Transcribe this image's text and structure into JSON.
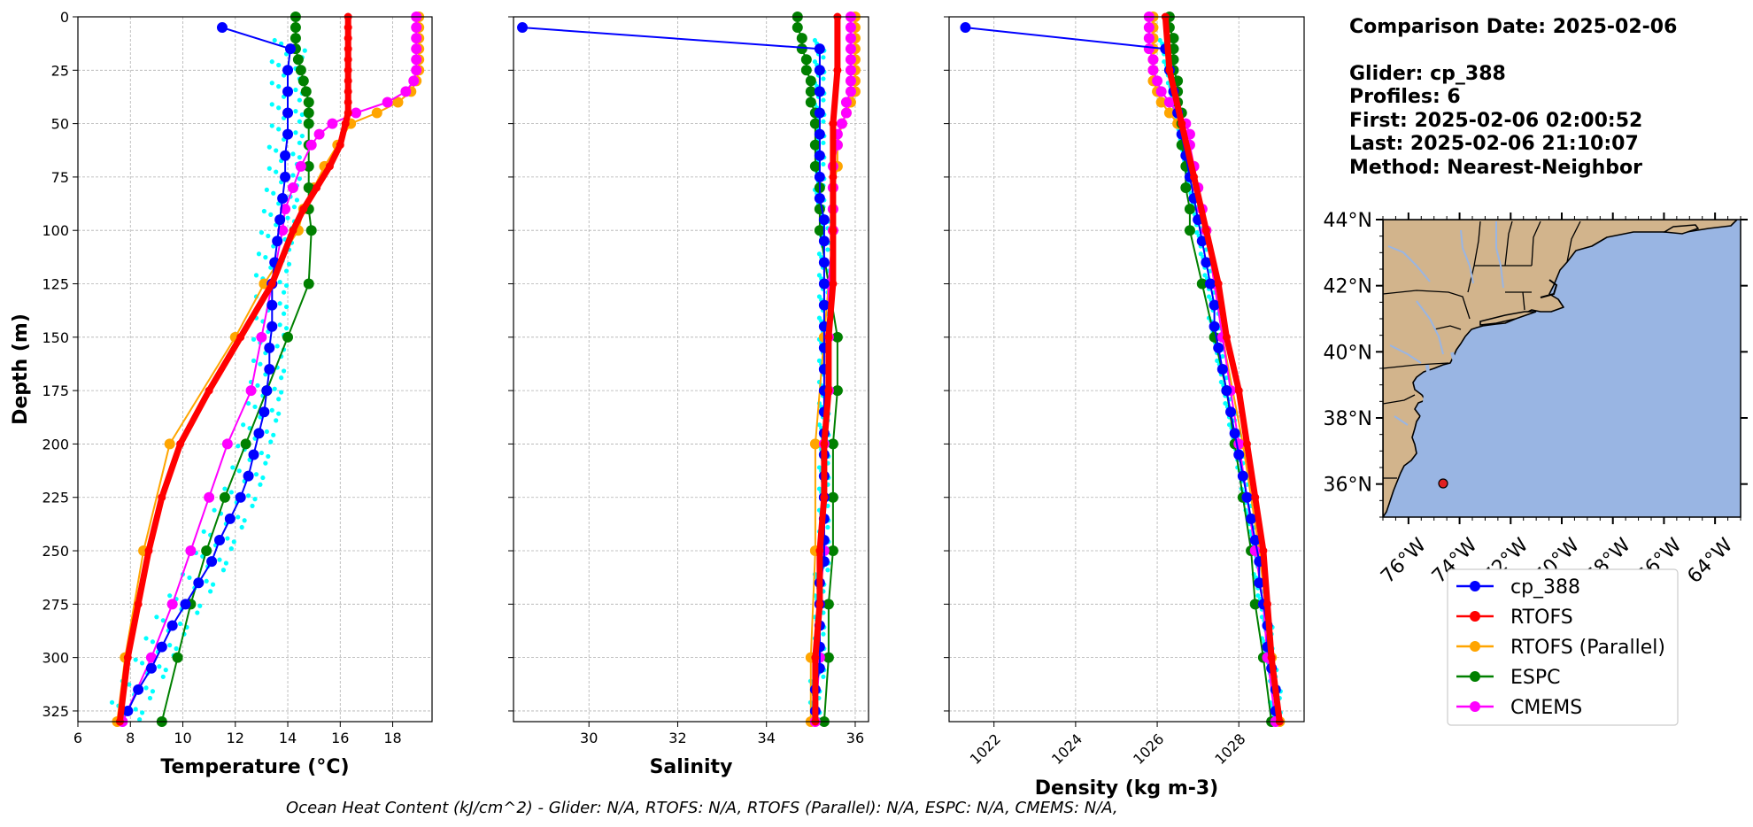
{
  "info": {
    "comparison_date": "Comparison Date: 2025-02-06",
    "glider": "Glider: cp_388",
    "profiles": "Profiles: 6",
    "first": "First: 2025-02-06 02:00:52",
    "last": "Last: 2025-02-06 21:10:07",
    "method": "Method: Nearest-Neighbor"
  },
  "footer": "Ocean Heat Content (kJ/cm^2) - Glider: N/A,  RTOFS: N/A,  RTOFS (Parallel): N/A,  ESPC: N/A,  CMEMS: N/A,",
  "legend": [
    {
      "name": "cp_388",
      "color": "#0000ff"
    },
    {
      "name": "RTOFS",
      "color": "#ff0000"
    },
    {
      "name": "RTOFS (Parallel)",
      "color": "#ffa500"
    },
    {
      "name": "ESPC",
      "color": "#008000"
    },
    {
      "name": "CMEMS",
      "color": "#ff00ff"
    }
  ],
  "map": {
    "lat_labels": [
      "44°N",
      "42°N",
      "40°N",
      "38°N",
      "36°N"
    ],
    "lon_labels": [
      "76°W",
      "74°W",
      "72°W",
      "70°W",
      "68°W",
      "66°W",
      "64°W"
    ],
    "lon_range": [
      -77,
      -63
    ],
    "lat_range": [
      35,
      44
    ],
    "glider_location": {
      "lon": -74.2,
      "lat": 36.1,
      "color": "#e02020"
    },
    "land_color": "#d2b48c",
    "ocean_color": "#99b5e3"
  },
  "chart_data": [
    {
      "type": "line",
      "xlabel": "Temperature (°C)",
      "ylabel": "Depth (m)",
      "xlim": [
        6,
        19.5
      ],
      "ylim": [
        330,
        0
      ],
      "x_ticks": [
        6,
        8,
        10,
        12,
        14,
        16,
        18
      ],
      "y_ticks": [
        0,
        25,
        50,
        75,
        100,
        125,
        150,
        175,
        200,
        225,
        250,
        275,
        300,
        325
      ],
      "grid": true,
      "series": [
        {
          "name": "cp_388",
          "color": "#0000ff",
          "depth": [
            5,
            15,
            25,
            35,
            45,
            55,
            65,
            75,
            85,
            95,
            105,
            115,
            125,
            135,
            145,
            155,
            165,
            175,
            185,
            195,
            205,
            215,
            225,
            235,
            245,
            255,
            265,
            275,
            285,
            295,
            305,
            315,
            325
          ],
          "values": [
            11.5,
            14.1,
            14.0,
            14.0,
            14.0,
            14.0,
            13.9,
            13.9,
            13.8,
            13.7,
            13.6,
            13.5,
            13.4,
            13.4,
            13.4,
            13.3,
            13.3,
            13.2,
            13.1,
            12.9,
            12.7,
            12.5,
            12.2,
            11.8,
            11.4,
            11.1,
            10.6,
            10.1,
            9.6,
            9.2,
            8.8,
            8.3,
            7.9
          ]
        },
        {
          "name": "RTOFS",
          "color": "#ff0000",
          "depth": [
            0,
            5,
            10,
            15,
            20,
            25,
            30,
            35,
            40,
            45,
            50,
            60,
            70,
            80,
            90,
            100,
            125,
            150,
            175,
            200,
            225,
            250,
            275,
            300,
            330
          ],
          "values": [
            16.3,
            16.3,
            16.3,
            16.3,
            16.3,
            16.3,
            16.3,
            16.3,
            16.3,
            16.3,
            16.2,
            16.0,
            15.6,
            15.1,
            14.6,
            14.2,
            13.4,
            12.2,
            11.0,
            9.9,
            9.2,
            8.7,
            8.3,
            7.9,
            7.6
          ]
        },
        {
          "name": "RTOFS (Parallel)",
          "color": "#ffa500",
          "depth": [
            0,
            5,
            10,
            15,
            20,
            25,
            30,
            35,
            40,
            45,
            50,
            60,
            70,
            80,
            90,
            100,
            125,
            150,
            200,
            250,
            300,
            330
          ],
          "values": [
            19.0,
            19.0,
            19.0,
            19.0,
            19.0,
            19.0,
            18.9,
            18.7,
            18.2,
            17.4,
            16.4,
            15.9,
            15.4,
            15.0,
            14.6,
            14.4,
            13.1,
            12.0,
            9.5,
            8.5,
            7.8,
            7.5
          ]
        },
        {
          "name": "ESPC",
          "color": "#008000",
          "depth": [
            0,
            5,
            10,
            15,
            20,
            25,
            30,
            35,
            40,
            45,
            50,
            60,
            70,
            80,
            90,
            100,
            125,
            150,
            175,
            200,
            225,
            250,
            275,
            300,
            330
          ],
          "values": [
            14.3,
            14.3,
            14.3,
            14.3,
            14.4,
            14.5,
            14.6,
            14.7,
            14.8,
            14.8,
            14.8,
            14.8,
            14.8,
            14.8,
            14.8,
            14.9,
            14.8,
            14.0,
            13.2,
            12.4,
            11.6,
            10.9,
            10.3,
            9.8,
            9.2
          ]
        },
        {
          "name": "CMEMS",
          "color": "#ff00ff",
          "depth": [
            0,
            5,
            10,
            15,
            20,
            25,
            30,
            35,
            40,
            45,
            50,
            55,
            60,
            70,
            80,
            90,
            100,
            125,
            150,
            175,
            200,
            225,
            250,
            275,
            300,
            330
          ],
          "values": [
            18.9,
            18.9,
            18.9,
            18.9,
            18.9,
            18.9,
            18.8,
            18.5,
            17.8,
            16.6,
            15.7,
            15.2,
            14.9,
            14.5,
            14.2,
            13.9,
            13.8,
            13.4,
            13.0,
            12.6,
            11.7,
            11.0,
            10.3,
            9.6,
            8.8,
            7.7
          ]
        }
      ]
    },
    {
      "type": "line",
      "xlabel": "Salinity",
      "xlim": [
        28.3,
        36.3
      ],
      "ylim": [
        330,
        0
      ],
      "x_ticks": [
        30,
        32,
        34,
        36
      ],
      "y_ticks": [
        0,
        25,
        50,
        75,
        100,
        125,
        150,
        175,
        200,
        225,
        250,
        275,
        300,
        325
      ],
      "grid": true,
      "series": [
        {
          "name": "cp_388",
          "color": "#0000ff",
          "depth": [
            5,
            15,
            25,
            35,
            45,
            55,
            65,
            75,
            85,
            95,
            105,
            115,
            125,
            135,
            145,
            155,
            165,
            175,
            185,
            195,
            205,
            215,
            225,
            235,
            245,
            255,
            265,
            275,
            285,
            295,
            305,
            315,
            325
          ],
          "values": [
            28.5,
            35.2,
            35.2,
            35.2,
            35.2,
            35.2,
            35.2,
            35.2,
            35.2,
            35.3,
            35.3,
            35.3,
            35.3,
            35.3,
            35.3,
            35.3,
            35.3,
            35.3,
            35.3,
            35.3,
            35.3,
            35.3,
            35.3,
            35.3,
            35.3,
            35.3,
            35.2,
            35.2,
            35.2,
            35.2,
            35.2,
            35.1,
            35.1
          ]
        },
        {
          "name": "RTOFS",
          "color": "#ff0000",
          "depth": [
            0,
            25,
            50,
            75,
            100,
            125,
            150,
            175,
            200,
            225,
            250,
            275,
            300,
            330
          ],
          "values": [
            35.6,
            35.6,
            35.5,
            35.5,
            35.5,
            35.5,
            35.4,
            35.4,
            35.3,
            35.3,
            35.2,
            35.2,
            35.1,
            35.1
          ]
        },
        {
          "name": "RTOFS (Parallel)",
          "color": "#ffa500",
          "depth": [
            0,
            5,
            10,
            15,
            20,
            25,
            30,
            35,
            40,
            45,
            50,
            60,
            70,
            80,
            90,
            100,
            125,
            150,
            200,
            250,
            300,
            330
          ],
          "values": [
            36.0,
            36.0,
            36.0,
            36.0,
            36.0,
            36.0,
            36.0,
            36.0,
            35.9,
            35.8,
            35.7,
            35.6,
            35.6,
            35.5,
            35.5,
            35.5,
            35.4,
            35.3,
            35.1,
            35.1,
            35.0,
            35.0
          ]
        },
        {
          "name": "ESPC",
          "color": "#008000",
          "depth": [
            0,
            5,
            10,
            15,
            20,
            25,
            30,
            35,
            40,
            45,
            50,
            60,
            70,
            80,
            90,
            100,
            125,
            150,
            175,
            200,
            225,
            250,
            275,
            300,
            330
          ],
          "values": [
            34.7,
            34.7,
            34.8,
            34.8,
            34.9,
            34.9,
            35.0,
            35.0,
            35.0,
            35.1,
            35.1,
            35.1,
            35.1,
            35.2,
            35.2,
            35.2,
            35.4,
            35.6,
            35.6,
            35.5,
            35.5,
            35.5,
            35.4,
            35.4,
            35.3
          ]
        },
        {
          "name": "CMEMS",
          "color": "#ff00ff",
          "depth": [
            0,
            5,
            10,
            15,
            20,
            25,
            30,
            35,
            40,
            45,
            50,
            55,
            60,
            70,
            80,
            90,
            100,
            125,
            150,
            175,
            200,
            225,
            250,
            275,
            300,
            330
          ],
          "values": [
            35.9,
            35.9,
            35.9,
            35.9,
            35.9,
            35.9,
            35.9,
            35.9,
            35.8,
            35.8,
            35.7,
            35.6,
            35.6,
            35.5,
            35.5,
            35.5,
            35.5,
            35.4,
            35.4,
            35.4,
            35.3,
            35.3,
            35.3,
            35.2,
            35.2,
            35.1
          ]
        }
      ]
    },
    {
      "type": "line",
      "xlabel": "Density (kg m-3)",
      "xlim": [
        1020.9,
        1029.6
      ],
      "ylim": [
        330,
        0
      ],
      "x_ticks": [
        1022,
        1024,
        1026,
        1028
      ],
      "y_ticks": [
        0,
        25,
        50,
        75,
        100,
        125,
        150,
        175,
        200,
        225,
        250,
        275,
        300,
        325
      ],
      "grid": true,
      "series": [
        {
          "name": "cp_388",
          "color": "#0000ff",
          "depth": [
            5,
            15,
            25,
            35,
            45,
            55,
            65,
            75,
            85,
            95,
            105,
            115,
            125,
            135,
            145,
            155,
            165,
            175,
            185,
            195,
            205,
            215,
            225,
            235,
            245,
            255,
            265,
            275,
            285,
            295,
            305,
            315,
            325
          ],
          "values": [
            1021.3,
            1026.2,
            1026.3,
            1026.4,
            1026.5,
            1026.6,
            1026.7,
            1026.8,
            1026.9,
            1027.0,
            1027.1,
            1027.2,
            1027.3,
            1027.4,
            1027.4,
            1027.5,
            1027.6,
            1027.7,
            1027.8,
            1027.9,
            1028.0,
            1028.1,
            1028.2,
            1028.3,
            1028.4,
            1028.5,
            1028.5,
            1028.6,
            1028.7,
            1028.7,
            1028.8,
            1028.9,
            1028.9
          ]
        },
        {
          "name": "RTOFS",
          "color": "#ff0000",
          "depth": [
            0,
            25,
            50,
            75,
            100,
            125,
            150,
            175,
            200,
            225,
            250,
            275,
            300,
            330
          ],
          "values": [
            1026.2,
            1026.3,
            1026.6,
            1026.9,
            1027.2,
            1027.5,
            1027.7,
            1028.0,
            1028.2,
            1028.4,
            1028.6,
            1028.7,
            1028.8,
            1029.0
          ]
        },
        {
          "name": "RTOFS (Parallel)",
          "color": "#ffa500",
          "depth": [
            0,
            5,
            10,
            15,
            20,
            25,
            30,
            35,
            40,
            45,
            50,
            60,
            70,
            80,
            90,
            100,
            125,
            150,
            200,
            250,
            300,
            330
          ],
          "values": [
            1025.9,
            1025.9,
            1025.9,
            1025.9,
            1025.9,
            1025.9,
            1025.9,
            1026.0,
            1026.1,
            1026.3,
            1026.5,
            1026.7,
            1026.9,
            1027.0,
            1027.1,
            1027.2,
            1027.4,
            1027.6,
            1028.1,
            1028.5,
            1028.8,
            1029.0
          ]
        },
        {
          "name": "ESPC",
          "color": "#008000",
          "depth": [
            0,
            5,
            10,
            15,
            20,
            25,
            30,
            35,
            40,
            45,
            50,
            60,
            70,
            80,
            90,
            100,
            125,
            150,
            175,
            200,
            225,
            250,
            275,
            300,
            330
          ],
          "values": [
            1026.3,
            1026.3,
            1026.4,
            1026.4,
            1026.4,
            1026.4,
            1026.5,
            1026.5,
            1026.5,
            1026.6,
            1026.6,
            1026.6,
            1026.7,
            1026.7,
            1026.8,
            1026.8,
            1027.1,
            1027.4,
            1027.7,
            1027.9,
            1028.1,
            1028.3,
            1028.4,
            1028.6,
            1028.8
          ]
        },
        {
          "name": "CMEMS",
          "color": "#ff00ff",
          "depth": [
            0,
            5,
            10,
            15,
            20,
            25,
            30,
            35,
            40,
            45,
            50,
            55,
            60,
            70,
            80,
            90,
            100,
            125,
            150,
            175,
            200,
            225,
            250,
            275,
            300,
            330
          ],
          "values": [
            1025.8,
            1025.8,
            1025.8,
            1025.8,
            1025.9,
            1025.9,
            1026.0,
            1026.1,
            1026.3,
            1026.5,
            1026.7,
            1026.8,
            1026.8,
            1026.9,
            1027.0,
            1027.1,
            1027.2,
            1027.4,
            1027.6,
            1027.8,
            1028.0,
            1028.2,
            1028.4,
            1028.6,
            1028.7,
            1028.9
          ]
        }
      ]
    }
  ]
}
